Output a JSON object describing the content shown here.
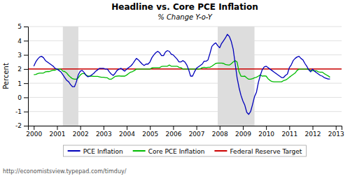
{
  "chart_data": {
    "type": "line",
    "title": "Headline vs. Core PCE Inflation",
    "subtitle": "% Change Y-o-Y",
    "ylabel": "Percent",
    "source": "http://economistsview.typepad.com/timduy/",
    "xlim": [
      1999.75,
      2013.25
    ],
    "xticks": [
      2000,
      2001,
      2002,
      2003,
      2004,
      2005,
      2006,
      2007,
      2008,
      2009,
      2010,
      2011,
      2012,
      2013
    ],
    "ylim": [
      -2,
      5
    ],
    "yticks": [
      -2,
      -1,
      0,
      1,
      2,
      3,
      4,
      5
    ],
    "grid": "y",
    "legend": "bottom",
    "recession_bands": [
      [
        2001.25,
        2001.917
      ],
      [
        2007.917,
        2009.5
      ]
    ],
    "x": [
      2000.0,
      2000.083,
      2000.167,
      2000.25,
      2000.333,
      2000.417,
      2000.5,
      2000.583,
      2000.667,
      2000.75,
      2000.833,
      2000.917,
      2001.0,
      2001.083,
      2001.167,
      2001.25,
      2001.333,
      2001.417,
      2001.5,
      2001.583,
      2001.667,
      2001.75,
      2001.833,
      2001.917,
      2002.0,
      2002.083,
      2002.167,
      2002.25,
      2002.333,
      2002.417,
      2002.5,
      2002.583,
      2002.667,
      2002.75,
      2002.833,
      2002.917,
      2003.0,
      2003.083,
      2003.167,
      2003.25,
      2003.333,
      2003.417,
      2003.5,
      2003.583,
      2003.667,
      2003.75,
      2003.833,
      2003.917,
      2004.0,
      2004.083,
      2004.167,
      2004.25,
      2004.333,
      2004.417,
      2004.5,
      2004.583,
      2004.667,
      2004.75,
      2004.833,
      2004.917,
      2005.0,
      2005.083,
      2005.167,
      2005.25,
      2005.333,
      2005.417,
      2005.5,
      2005.583,
      2005.667,
      2005.75,
      2005.833,
      2005.917,
      2006.0,
      2006.083,
      2006.167,
      2006.25,
      2006.333,
      2006.417,
      2006.5,
      2006.583,
      2006.667,
      2006.75,
      2006.833,
      2006.917,
      2007.0,
      2007.083,
      2007.167,
      2007.25,
      2007.333,
      2007.417,
      2007.5,
      2007.583,
      2007.667,
      2007.75,
      2007.833,
      2007.917,
      2008.0,
      2008.083,
      2008.167,
      2008.25,
      2008.333,
      2008.417,
      2008.5,
      2008.583,
      2008.667,
      2008.75,
      2008.833,
      2008.917,
      2009.0,
      2009.083,
      2009.167,
      2009.25,
      2009.333,
      2009.417,
      2009.5,
      2009.583,
      2009.667,
      2009.75,
      2009.833,
      2009.917,
      2010.0,
      2010.083,
      2010.167,
      2010.25,
      2010.333,
      2010.417,
      2010.5,
      2010.583,
      2010.667,
      2010.75,
      2010.833,
      2010.917,
      2011.0,
      2011.083,
      2011.167,
      2011.25,
      2011.333,
      2011.417,
      2011.5,
      2011.583,
      2011.667,
      2011.75,
      2011.833,
      2011.917,
      2012.0,
      2012.083,
      2012.167,
      2012.25,
      2012.333,
      2012.417,
      2012.5,
      2012.583,
      2012.667,
      2012.75
    ],
    "series": [
      {
        "name": "PCE Inflation",
        "color": "#0000BB",
        "values": [
          2.2,
          2.5,
          2.7,
          2.85,
          2.9,
          2.8,
          2.6,
          2.5,
          2.4,
          2.3,
          2.2,
          2.05,
          2.0,
          1.9,
          1.8,
          1.6,
          1.4,
          1.2,
          1.1,
          0.9,
          0.75,
          0.75,
          1.1,
          1.6,
          1.85,
          1.9,
          1.75,
          1.55,
          1.45,
          1.5,
          1.6,
          1.7,
          1.85,
          1.95,
          2.05,
          2.05,
          2.05,
          2.0,
          2.0,
          1.8,
          1.65,
          1.55,
          1.7,
          1.9,
          2.0,
          2.05,
          1.95,
          1.85,
          2.0,
          2.1,
          2.2,
          2.35,
          2.55,
          2.75,
          2.65,
          2.5,
          2.35,
          2.25,
          2.35,
          2.35,
          2.5,
          2.8,
          3.0,
          3.15,
          3.25,
          3.15,
          2.95,
          2.95,
          3.2,
          3.3,
          3.25,
          3.05,
          3.0,
          2.85,
          2.7,
          2.5,
          2.5,
          2.6,
          2.5,
          2.3,
          1.95,
          1.5,
          1.5,
          1.8,
          2.05,
          2.15,
          2.25,
          2.35,
          2.55,
          2.55,
          2.65,
          3.1,
          3.6,
          3.75,
          3.85,
          3.65,
          3.5,
          3.8,
          4.0,
          4.2,
          4.45,
          4.3,
          3.95,
          3.4,
          2.4,
          1.4,
          0.7,
          0.15,
          -0.25,
          -0.55,
          -1.05,
          -1.2,
          -1.0,
          -0.5,
          0.05,
          0.35,
          1.05,
          1.55,
          1.95,
          2.15,
          2.2,
          2.1,
          2.0,
          1.9,
          1.8,
          1.7,
          1.6,
          1.5,
          1.4,
          1.4,
          1.55,
          1.65,
          2.1,
          2.3,
          2.6,
          2.75,
          2.85,
          2.9,
          2.75,
          2.65,
          2.4,
          2.2,
          1.95,
          1.8,
          2.0,
          1.85,
          1.75,
          1.65,
          1.55,
          1.5,
          1.4,
          1.35,
          1.3,
          1.3
        ]
      },
      {
        "name": "Core PCE Inflation",
        "color": "#00BB00",
        "values": [
          1.6,
          1.62,
          1.68,
          1.72,
          1.72,
          1.72,
          1.8,
          1.82,
          1.82,
          1.88,
          1.92,
          1.92,
          1.98,
          2.0,
          2.0,
          1.85,
          1.82,
          1.72,
          1.55,
          1.42,
          1.32,
          1.28,
          1.28,
          1.38,
          1.58,
          1.68,
          1.68,
          1.58,
          1.5,
          1.5,
          1.5,
          1.48,
          1.48,
          1.48,
          1.45,
          1.42,
          1.42,
          1.4,
          1.38,
          1.28,
          1.28,
          1.38,
          1.48,
          1.5,
          1.52,
          1.5,
          1.5,
          1.5,
          1.58,
          1.68,
          1.78,
          1.82,
          1.9,
          2.0,
          2.0,
          2.0,
          2.0,
          2.0,
          2.0,
          2.0,
          2.0,
          2.08,
          2.1,
          2.1,
          2.1,
          2.1,
          2.18,
          2.2,
          2.2,
          2.2,
          2.28,
          2.2,
          2.2,
          2.2,
          2.2,
          2.12,
          2.1,
          2.0,
          2.0,
          2.0,
          2.0,
          2.0,
          2.0,
          2.0,
          2.0,
          2.0,
          2.02,
          2.1,
          2.12,
          2.1,
          2.12,
          2.12,
          2.2,
          2.3,
          2.4,
          2.42,
          2.42,
          2.42,
          2.4,
          2.32,
          2.3,
          2.28,
          2.38,
          2.5,
          2.6,
          2.5,
          1.82,
          1.5,
          1.48,
          1.5,
          1.38,
          1.28,
          1.28,
          1.32,
          1.38,
          1.42,
          1.5,
          1.58,
          1.5,
          1.52,
          1.5,
          1.32,
          1.2,
          1.12,
          1.1,
          1.1,
          1.1,
          1.1,
          1.1,
          1.18,
          1.22,
          1.3,
          1.42,
          1.52,
          1.62,
          1.72,
          1.9,
          2.0,
          2.0,
          2.0,
          2.0,
          2.0,
          1.98,
          1.9,
          1.88,
          1.88,
          1.88,
          1.8,
          1.78,
          1.78,
          1.68,
          1.6,
          1.52,
          1.42
        ]
      },
      {
        "name": "Federal Reserve Target",
        "color": "#CC0000",
        "type": "hline",
        "value": 2.0
      }
    ]
  }
}
